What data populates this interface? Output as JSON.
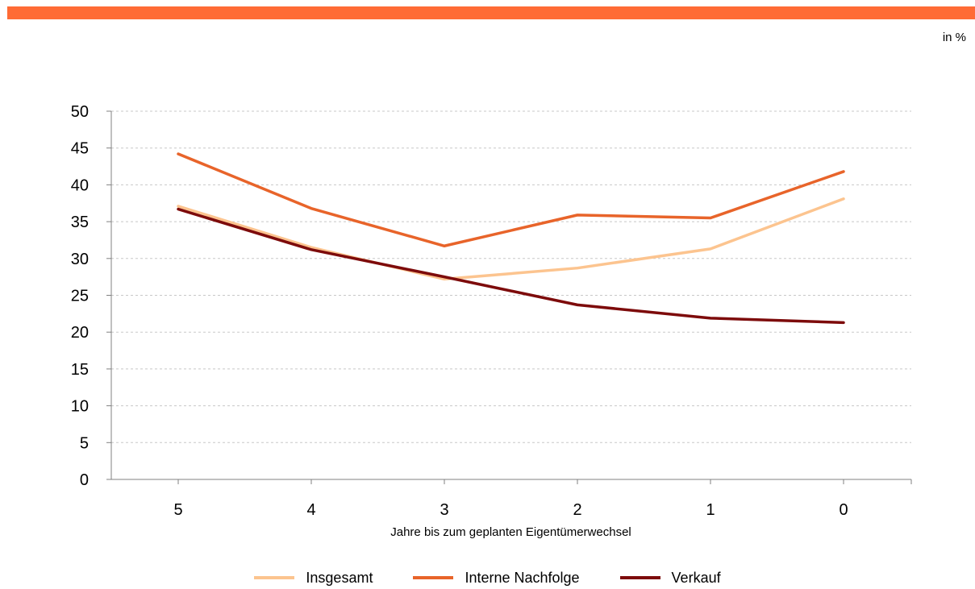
{
  "header": {
    "unit_label": "in %"
  },
  "colors": {
    "top_bar": "#ff6b35",
    "grid": "#c8c8c8",
    "axis": "#808080"
  },
  "chart_data": {
    "type": "line",
    "title": "",
    "xlabel": "Jahre bis zum geplanten Eigentümerwechsel",
    "ylabel": "",
    "categories": [
      "5",
      "4",
      "3",
      "2",
      "1",
      "0"
    ],
    "ylim": [
      0,
      50
    ],
    "yticks": [
      0,
      5,
      10,
      15,
      20,
      25,
      30,
      35,
      40,
      45,
      50
    ],
    "grid": true,
    "legend_position": "bottom",
    "series": [
      {
        "name": "Insgesamt",
        "color": "#fcc48f",
        "values": [
          37.1,
          31.5,
          27.2,
          28.7,
          31.3,
          38.1
        ]
      },
      {
        "name": "Interne Nachfolge",
        "color": "#e8642a",
        "values": [
          44.2,
          36.8,
          31.7,
          35.9,
          35.5,
          41.8
        ]
      },
      {
        "name": "Verkauf",
        "color": "#7d0b0b",
        "values": [
          36.7,
          31.2,
          27.5,
          23.7,
          21.9,
          21.3
        ]
      }
    ]
  }
}
